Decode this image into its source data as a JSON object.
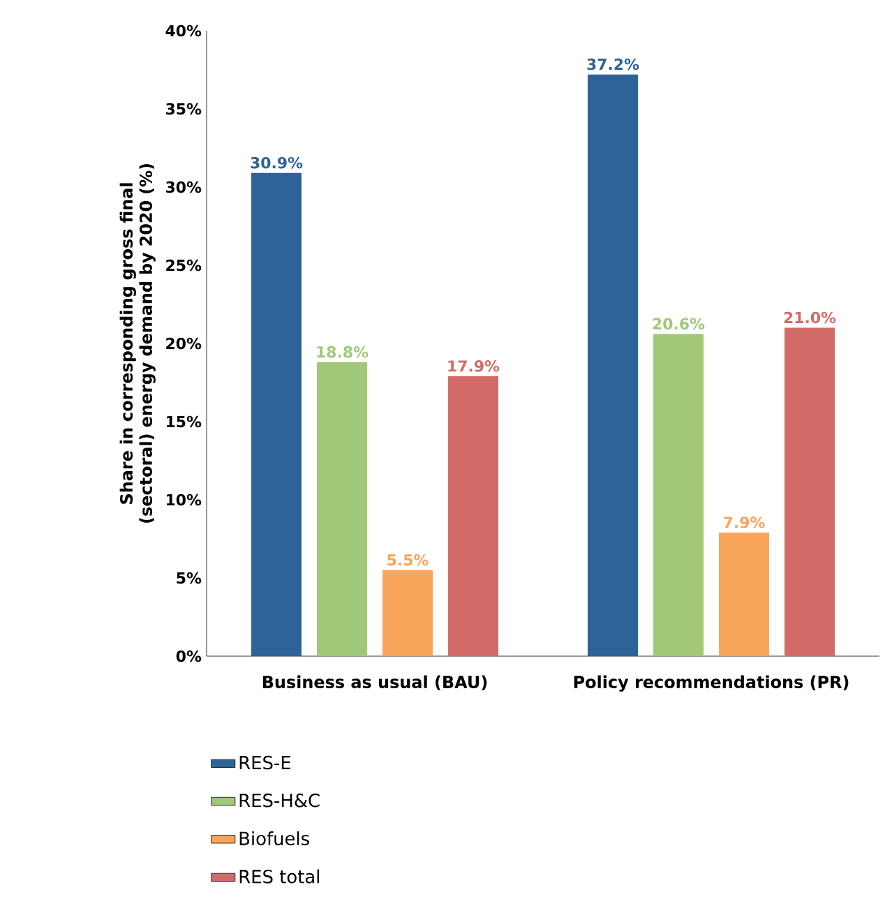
{
  "chart_data": {
    "type": "bar",
    "ylabel": "Share in corresponding gross final (sectoral) energy demand by 2020 (%)",
    "categories": [
      "Business as usual (BAU)",
      "Policy recommendations (PR)"
    ],
    "series": [
      {
        "name": "RES-E",
        "color": "#2e6399",
        "values": [
          30.9,
          37.2
        ],
        "value_labels": [
          "30.9%",
          "37.2%"
        ]
      },
      {
        "name": "RES-H&C",
        "color": "#a0c878",
        "values": [
          18.8,
          20.6
        ],
        "value_labels": [
          "18.8%",
          "20.6%"
        ]
      },
      {
        "name": "Biofuels",
        "color": "#f9a55b",
        "values": [
          5.5,
          7.9
        ],
        "value_labels": [
          "5.5%",
          "7.9%"
        ]
      },
      {
        "name": "RES total",
        "color": "#d26b67",
        "values": [
          17.9,
          21.0
        ],
        "value_labels": [
          "17.9%",
          "21.0%"
        ]
      }
    ],
    "ylim": [
      0,
      40
    ],
    "yticks": [
      {
        "value": 0,
        "label": "0%"
      },
      {
        "value": 5,
        "label": "5%"
      },
      {
        "value": 10,
        "label": "10%"
      },
      {
        "value": 15,
        "label": "15%"
      },
      {
        "value": 20,
        "label": "20%"
      },
      {
        "value": 25,
        "label": "25%"
      },
      {
        "value": 30,
        "label": "30%"
      },
      {
        "value": 35,
        "label": "35%"
      },
      {
        "value": 40,
        "label": "40%"
      }
    ],
    "legend": "bottom",
    "grid": false
  }
}
